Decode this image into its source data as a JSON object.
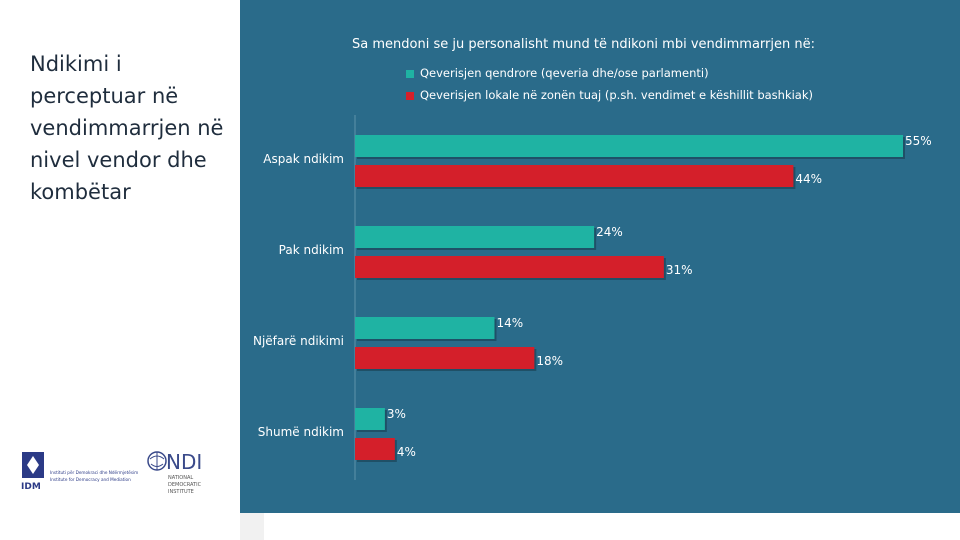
{
  "slide": {
    "title": "Ndikimi i perceptuar në vendimmarrjen në nivel vendor dhe kombëtar"
  },
  "logos": {
    "idm_mark": "IDM",
    "idm_text_1": "Instituti për Demokraci dhe Ndërmjetësim",
    "idm_text_2": "Institute for Democracy and Mediation",
    "ndi_mark": "NDI",
    "ndi_text_1": "NATIONAL",
    "ndi_text_2": "DEMOCRATIC",
    "ndi_text_3": "INSTITUTE"
  },
  "colors": {
    "panel": "#2a6b8a",
    "series_central": "#1fb3a3",
    "series_local": "#d41f2a"
  },
  "chart_data": {
    "type": "bar",
    "orientation": "horizontal",
    "title": "Sa mendoni se ju personalisht mund të ndikoni mbi vendimmarrjen në:",
    "categories": [
      "Aspak ndikim",
      "Pak ndikim",
      "Njëfarë ndikimi",
      "Shumë ndikim"
    ],
    "series": [
      {
        "name": "Qeverisjen qendrore (qeveria dhe/ose parlamenti)",
        "values": [
          55,
          24,
          14,
          3
        ],
        "labels": [
          "55%",
          "24%",
          "14%",
          "3%"
        ]
      },
      {
        "name": "Qeverisjen lokale në zonën tuaj (p.sh. vendimet e këshillit bashkiak)",
        "values": [
          44,
          31,
          18,
          4
        ],
        "labels": [
          "44%",
          "31%",
          "18%",
          "4%"
        ]
      }
    ],
    "xlim": [
      0,
      55
    ],
    "legend_position": "top"
  }
}
